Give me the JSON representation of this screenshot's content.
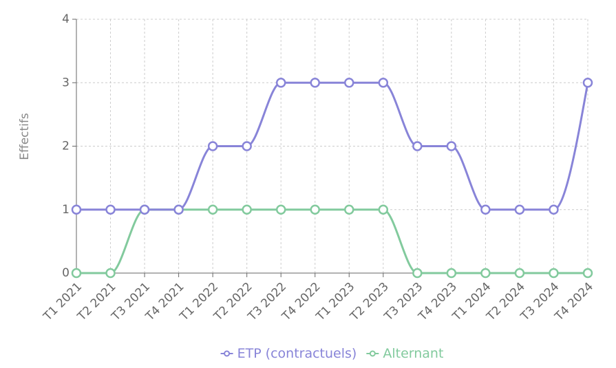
{
  "chart_data": {
    "type": "line",
    "title": "",
    "xlabel": "",
    "ylabel": "Effectifs",
    "categories": [
      "T1 2021",
      "T2 2021",
      "T3 2021",
      "T4 2021",
      "T1 2022",
      "T2 2022",
      "T3 2022",
      "T4 2022",
      "T1 2023",
      "T2 2023",
      "T3 2023",
      "T4 2023",
      "T1 2024",
      "T2 2024",
      "T3 2024",
      "T4 2024"
    ],
    "ylim": [
      0,
      4
    ],
    "yticks": [
      0,
      1,
      2,
      3,
      4
    ],
    "grid": true,
    "legend_position": "bottom",
    "series": [
      {
        "name": "ETP (contractuels)",
        "color": "#8884d8",
        "values": [
          1,
          1,
          1,
          1,
          2,
          2,
          3,
          3,
          3,
          3,
          2,
          2,
          1,
          1,
          1,
          3
        ]
      },
      {
        "name": "Alternant",
        "color": "#82ca9d",
        "values": [
          0,
          0,
          1,
          1,
          1,
          1,
          1,
          1,
          1,
          1,
          0,
          0,
          0,
          0,
          0,
          0
        ]
      }
    ]
  }
}
